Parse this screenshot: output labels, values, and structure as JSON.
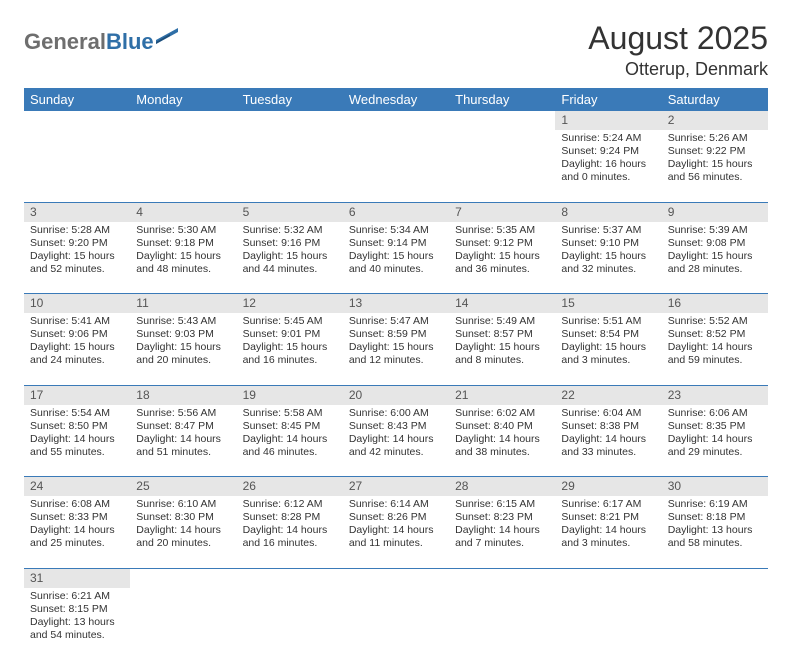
{
  "logo": {
    "gray": "General",
    "blue": "Blue"
  },
  "title": "August 2025",
  "location": "Otterup, Denmark",
  "colors": {
    "header_bg": "#3a7ab8",
    "header_fg": "#ffffff",
    "daynum_bg": "#e6e6e6",
    "rule": "#3a7ab8",
    "logo_gray": "#6e6e6e",
    "logo_blue": "#2f6fa7"
  },
  "day_headers": [
    "Sunday",
    "Monday",
    "Tuesday",
    "Wednesday",
    "Thursday",
    "Friday",
    "Saturday"
  ],
  "weeks": [
    [
      null,
      null,
      null,
      null,
      null,
      {
        "n": "1",
        "sr": "Sunrise: 5:24 AM",
        "ss": "Sunset: 9:24 PM",
        "dl1": "Daylight: 16 hours",
        "dl2": "and 0 minutes."
      },
      {
        "n": "2",
        "sr": "Sunrise: 5:26 AM",
        "ss": "Sunset: 9:22 PM",
        "dl1": "Daylight: 15 hours",
        "dl2": "and 56 minutes."
      }
    ],
    [
      {
        "n": "3",
        "sr": "Sunrise: 5:28 AM",
        "ss": "Sunset: 9:20 PM",
        "dl1": "Daylight: 15 hours",
        "dl2": "and 52 minutes."
      },
      {
        "n": "4",
        "sr": "Sunrise: 5:30 AM",
        "ss": "Sunset: 9:18 PM",
        "dl1": "Daylight: 15 hours",
        "dl2": "and 48 minutes."
      },
      {
        "n": "5",
        "sr": "Sunrise: 5:32 AM",
        "ss": "Sunset: 9:16 PM",
        "dl1": "Daylight: 15 hours",
        "dl2": "and 44 minutes."
      },
      {
        "n": "6",
        "sr": "Sunrise: 5:34 AM",
        "ss": "Sunset: 9:14 PM",
        "dl1": "Daylight: 15 hours",
        "dl2": "and 40 minutes."
      },
      {
        "n": "7",
        "sr": "Sunrise: 5:35 AM",
        "ss": "Sunset: 9:12 PM",
        "dl1": "Daylight: 15 hours",
        "dl2": "and 36 minutes."
      },
      {
        "n": "8",
        "sr": "Sunrise: 5:37 AM",
        "ss": "Sunset: 9:10 PM",
        "dl1": "Daylight: 15 hours",
        "dl2": "and 32 minutes."
      },
      {
        "n": "9",
        "sr": "Sunrise: 5:39 AM",
        "ss": "Sunset: 9:08 PM",
        "dl1": "Daylight: 15 hours",
        "dl2": "and 28 minutes."
      }
    ],
    [
      {
        "n": "10",
        "sr": "Sunrise: 5:41 AM",
        "ss": "Sunset: 9:06 PM",
        "dl1": "Daylight: 15 hours",
        "dl2": "and 24 minutes."
      },
      {
        "n": "11",
        "sr": "Sunrise: 5:43 AM",
        "ss": "Sunset: 9:03 PM",
        "dl1": "Daylight: 15 hours",
        "dl2": "and 20 minutes."
      },
      {
        "n": "12",
        "sr": "Sunrise: 5:45 AM",
        "ss": "Sunset: 9:01 PM",
        "dl1": "Daylight: 15 hours",
        "dl2": "and 16 minutes."
      },
      {
        "n": "13",
        "sr": "Sunrise: 5:47 AM",
        "ss": "Sunset: 8:59 PM",
        "dl1": "Daylight: 15 hours",
        "dl2": "and 12 minutes."
      },
      {
        "n": "14",
        "sr": "Sunrise: 5:49 AM",
        "ss": "Sunset: 8:57 PM",
        "dl1": "Daylight: 15 hours",
        "dl2": "and 8 minutes."
      },
      {
        "n": "15",
        "sr": "Sunrise: 5:51 AM",
        "ss": "Sunset: 8:54 PM",
        "dl1": "Daylight: 15 hours",
        "dl2": "and 3 minutes."
      },
      {
        "n": "16",
        "sr": "Sunrise: 5:52 AM",
        "ss": "Sunset: 8:52 PM",
        "dl1": "Daylight: 14 hours",
        "dl2": "and 59 minutes."
      }
    ],
    [
      {
        "n": "17",
        "sr": "Sunrise: 5:54 AM",
        "ss": "Sunset: 8:50 PM",
        "dl1": "Daylight: 14 hours",
        "dl2": "and 55 minutes."
      },
      {
        "n": "18",
        "sr": "Sunrise: 5:56 AM",
        "ss": "Sunset: 8:47 PM",
        "dl1": "Daylight: 14 hours",
        "dl2": "and 51 minutes."
      },
      {
        "n": "19",
        "sr": "Sunrise: 5:58 AM",
        "ss": "Sunset: 8:45 PM",
        "dl1": "Daylight: 14 hours",
        "dl2": "and 46 minutes."
      },
      {
        "n": "20",
        "sr": "Sunrise: 6:00 AM",
        "ss": "Sunset: 8:43 PM",
        "dl1": "Daylight: 14 hours",
        "dl2": "and 42 minutes."
      },
      {
        "n": "21",
        "sr": "Sunrise: 6:02 AM",
        "ss": "Sunset: 8:40 PM",
        "dl1": "Daylight: 14 hours",
        "dl2": "and 38 minutes."
      },
      {
        "n": "22",
        "sr": "Sunrise: 6:04 AM",
        "ss": "Sunset: 8:38 PM",
        "dl1": "Daylight: 14 hours",
        "dl2": "and 33 minutes."
      },
      {
        "n": "23",
        "sr": "Sunrise: 6:06 AM",
        "ss": "Sunset: 8:35 PM",
        "dl1": "Daylight: 14 hours",
        "dl2": "and 29 minutes."
      }
    ],
    [
      {
        "n": "24",
        "sr": "Sunrise: 6:08 AM",
        "ss": "Sunset: 8:33 PM",
        "dl1": "Daylight: 14 hours",
        "dl2": "and 25 minutes."
      },
      {
        "n": "25",
        "sr": "Sunrise: 6:10 AM",
        "ss": "Sunset: 8:30 PM",
        "dl1": "Daylight: 14 hours",
        "dl2": "and 20 minutes."
      },
      {
        "n": "26",
        "sr": "Sunrise: 6:12 AM",
        "ss": "Sunset: 8:28 PM",
        "dl1": "Daylight: 14 hours",
        "dl2": "and 16 minutes."
      },
      {
        "n": "27",
        "sr": "Sunrise: 6:14 AM",
        "ss": "Sunset: 8:26 PM",
        "dl1": "Daylight: 14 hours",
        "dl2": "and 11 minutes."
      },
      {
        "n": "28",
        "sr": "Sunrise: 6:15 AM",
        "ss": "Sunset: 8:23 PM",
        "dl1": "Daylight: 14 hours",
        "dl2": "and 7 minutes."
      },
      {
        "n": "29",
        "sr": "Sunrise: 6:17 AM",
        "ss": "Sunset: 8:21 PM",
        "dl1": "Daylight: 14 hours",
        "dl2": "and 3 minutes."
      },
      {
        "n": "30",
        "sr": "Sunrise: 6:19 AM",
        "ss": "Sunset: 8:18 PM",
        "dl1": "Daylight: 13 hours",
        "dl2": "and 58 minutes."
      }
    ],
    [
      {
        "n": "31",
        "sr": "Sunrise: 6:21 AM",
        "ss": "Sunset: 8:15 PM",
        "dl1": "Daylight: 13 hours",
        "dl2": "and 54 minutes."
      },
      null,
      null,
      null,
      null,
      null,
      null
    ]
  ]
}
